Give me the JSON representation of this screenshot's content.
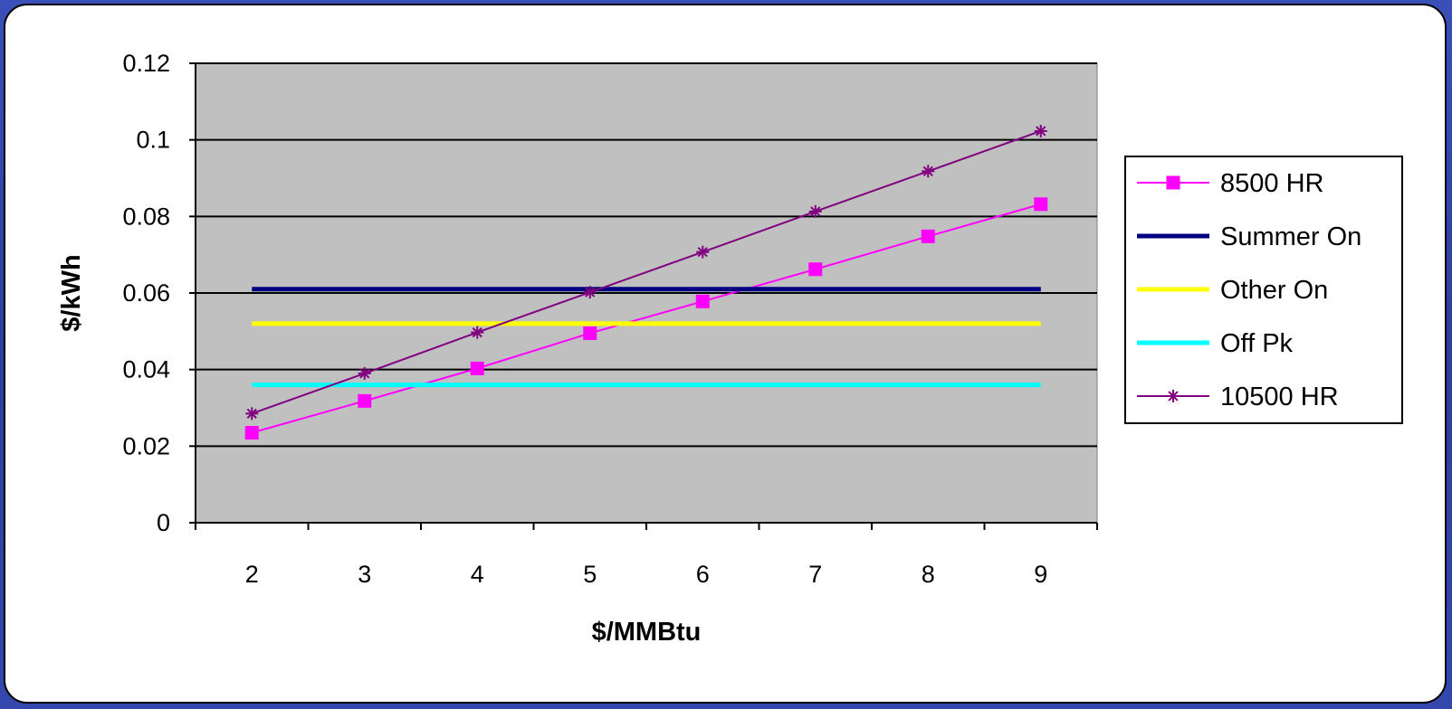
{
  "chart_data": {
    "type": "line",
    "xlabel": "$/MMBtu",
    "ylabel": "$/kWh",
    "categories": [
      "2",
      "3",
      "4",
      "5",
      "6",
      "7",
      "8",
      "9"
    ],
    "ylim": [
      0,
      0.12
    ],
    "yticks": [
      "0",
      "0.02",
      "0.04",
      "0.06",
      "0.08",
      "0.1",
      "0.12"
    ],
    "grid": "horizontal",
    "plot_background": "#c0c0c0",
    "legend_position": "right",
    "series": [
      {
        "name": "8500 HR",
        "color": "#ff00ff",
        "marker": "square",
        "values": [
          0.0235,
          0.0318,
          0.0403,
          0.0495,
          0.0578,
          0.0662,
          0.0748,
          0.0832
        ]
      },
      {
        "name": "Summer On",
        "color": "#000080",
        "marker": "none",
        "values": [
          0.061,
          0.061,
          0.061,
          0.061,
          0.061,
          0.061,
          0.061,
          0.061
        ]
      },
      {
        "name": "Other On",
        "color": "#ffff00",
        "marker": "none",
        "values": [
          0.052,
          0.052,
          0.052,
          0.052,
          0.052,
          0.052,
          0.052,
          0.052
        ]
      },
      {
        "name": "Off Pk",
        "color": "#00ffff",
        "marker": "none",
        "values": [
          0.036,
          0.036,
          0.036,
          0.036,
          0.036,
          0.036,
          0.036,
          0.036
        ]
      },
      {
        "name": "10500 HR",
        "color": "#800080",
        "marker": "star",
        "values": [
          0.0285,
          0.039,
          0.0497,
          0.0602,
          0.0707,
          0.0813,
          0.0918,
          0.1023
        ]
      }
    ]
  }
}
